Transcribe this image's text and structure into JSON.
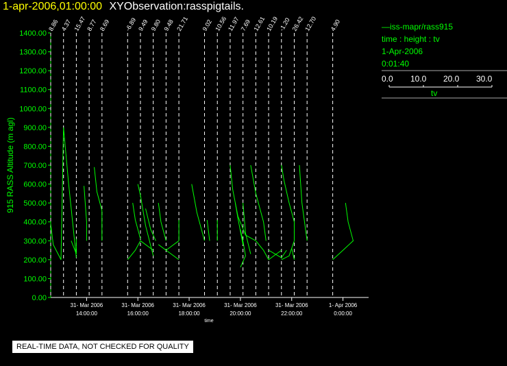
{
  "header": {
    "date": "1-apr-2006,01:00:00",
    "observation": "XYObservation:rasspigtails."
  },
  "legend": {
    "line1": "iss-mapr/rass915",
    "line2": "time : height : tv",
    "line3": "1-Apr-2006",
    "line4": "0:01:40",
    "scale_ticks": [
      "0.0",
      "10.0",
      "20.0",
      "30.0"
    ],
    "scale_label": "tv"
  },
  "notice": "REAL-TIME DATA, NOT CHECKED FOR QUALITY",
  "colors": {
    "data": "#00ff00",
    "title": "#ffff00",
    "axis": "#ffffff",
    "background": "#000000"
  },
  "chart_data": {
    "type": "line",
    "ylabel": "915 RASS Altitude (m agl)",
    "xlabel": "time",
    "ylim": [
      0,
      1400
    ],
    "yticks": [
      "0.00",
      "100.00",
      "200.00",
      "300.00",
      "400.00",
      "500.00",
      "600.00",
      "700.00",
      "800.00",
      "900.00",
      "1000.00",
      "1100.00",
      "1200.00",
      "1300.00",
      "1400.00"
    ],
    "xlim": [
      12.6,
      25.0
    ],
    "xticks": [
      {
        "x": 14,
        "label1": "31- Mar 2006",
        "label2": "14:00:00"
      },
      {
        "x": 16,
        "label1": "31- Mar 2006",
        "label2": "16:00:00"
      },
      {
        "x": 18,
        "label1": "31- Mar 2006",
        "label2": "18:00:00"
      },
      {
        "x": 20,
        "label1": "31- Mar 2006",
        "label2": "20:00:00"
      },
      {
        "x": 22,
        "label1": "31- Mar 2006",
        "label2": "22:00:00"
      },
      {
        "x": 24,
        "label1": "1- Apr 2006",
        "label2": "0:00:00"
      }
    ],
    "time_labels": [
      {
        "x": 12.6,
        "label": "8.86"
      },
      {
        "x": 13.1,
        "label": "4.37"
      },
      {
        "x": 13.6,
        "label": "15.47"
      },
      {
        "x": 14.1,
        "label": "8.77"
      },
      {
        "x": 14.6,
        "label": "8.69"
      },
      {
        "x": 15.6,
        "label": "-6.89"
      },
      {
        "x": 16.1,
        "label": "9.49"
      },
      {
        "x": 16.6,
        "label": "9.80"
      },
      {
        "x": 17.1,
        "label": "9.48"
      },
      {
        "x": 17.6,
        "label": "21.71"
      },
      {
        "x": 18.6,
        "label": "9.02"
      },
      {
        "x": 19.1,
        "label": "10.56"
      },
      {
        "x": 19.6,
        "label": "11.97"
      },
      {
        "x": 20.1,
        "label": "7.69"
      },
      {
        "x": 20.6,
        "label": "12.61"
      },
      {
        "x": 21.1,
        "label": "10.19"
      },
      {
        "x": 21.6,
        "label": "-1.20"
      },
      {
        "x": 22.1,
        "label": "26.42"
      },
      {
        "x": 22.6,
        "label": "12.70"
      },
      {
        "x": 23.6,
        "label": "4.90"
      }
    ],
    "series_legend": "iss-mapr/rass915",
    "profiles": [
      [
        [
          12.6,
          390
        ],
        [
          12.7,
          280
        ],
        [
          13.0,
          200
        ],
        [
          13.1,
          900
        ],
        [
          13.3,
          600
        ],
        [
          13.6,
          210
        ]
      ],
      [
        [
          13.4,
          300
        ],
        [
          13.6,
          230
        ],
        [
          13.6,
          310
        ]
      ],
      [
        [
          13.9,
          590
        ],
        [
          14.0,
          400
        ],
        [
          14.0,
          300
        ]
      ],
      [
        [
          14.3,
          690
        ],
        [
          14.4,
          560
        ],
        [
          14.6,
          460
        ],
        [
          14.6,
          300
        ]
      ],
      [
        [
          15.6,
          200
        ],
        [
          15.9,
          250
        ],
        [
          16.1,
          300
        ],
        [
          16.6,
          250
        ]
      ],
      [
        [
          15.8,
          500
        ],
        [
          15.9,
          410
        ],
        [
          16.1,
          310
        ]
      ],
      [
        [
          16.0,
          600
        ],
        [
          16.1,
          540
        ],
        [
          16.3,
          380
        ],
        [
          16.6,
          220
        ]
      ],
      [
        [
          16.3,
          470
        ],
        [
          16.5,
          360
        ],
        [
          16.7,
          300
        ]
      ],
      [
        [
          16.8,
          500
        ],
        [
          16.9,
          400
        ],
        [
          17.1,
          300
        ]
      ],
      [
        [
          16.8,
          280
        ],
        [
          17.1,
          250
        ],
        [
          17.6,
          200
        ]
      ],
      [
        [
          17.1,
          250
        ],
        [
          17.6,
          300
        ]
      ],
      [
        [
          17.6,
          410
        ],
        [
          17.6,
          300
        ]
      ],
      [
        [
          18.1,
          600
        ],
        [
          18.3,
          450
        ],
        [
          18.6,
          300
        ]
      ],
      [
        [
          18.7,
          410
        ],
        [
          18.8,
          300
        ]
      ],
      [
        [
          19.1,
          410
        ],
        [
          19.1,
          300
        ]
      ],
      [
        [
          19.6,
          700
        ],
        [
          19.7,
          570
        ],
        [
          19.9,
          430
        ],
        [
          20.2,
          330
        ],
        [
          20.6,
          300
        ]
      ],
      [
        [
          19.8,
          500
        ],
        [
          19.9,
          420
        ],
        [
          20.1,
          280
        ]
      ],
      [
        [
          20.0,
          360
        ],
        [
          20.1,
          300
        ],
        [
          20.2,
          220
        ],
        [
          20.0,
          160
        ]
      ],
      [
        [
          20.1,
          500
        ],
        [
          20.2,
          340
        ],
        [
          20.4,
          230
        ]
      ],
      [
        [
          20.4,
          700
        ],
        [
          20.6,
          550
        ],
        [
          20.9,
          400
        ],
        [
          21.0,
          300
        ]
      ],
      [
        [
          20.6,
          300
        ],
        [
          20.9,
          250
        ],
        [
          21.1,
          200
        ],
        [
          21.6,
          250
        ]
      ],
      [
        [
          21.6,
          200
        ],
        [
          21.9,
          220
        ],
        [
          22.1,
          300
        ]
      ],
      [
        [
          21.6,
          700
        ],
        [
          21.7,
          620
        ],
        [
          21.9,
          500
        ],
        [
          22.1,
          400
        ],
        [
          22.1,
          300
        ]
      ],
      [
        [
          21.1,
          250
        ],
        [
          21.6,
          210
        ],
        [
          21.8,
          250
        ]
      ],
      [
        [
          22.0,
          260
        ],
        [
          22.1,
          200
        ]
      ],
      [
        [
          22.3,
          700
        ],
        [
          22.4,
          500
        ],
        [
          22.6,
          300
        ]
      ],
      [
        [
          23.6,
          200
        ],
        [
          24.0,
          250
        ],
        [
          24.4,
          300
        ],
        [
          24.2,
          400
        ],
        [
          24.1,
          500
        ]
      ]
    ]
  }
}
